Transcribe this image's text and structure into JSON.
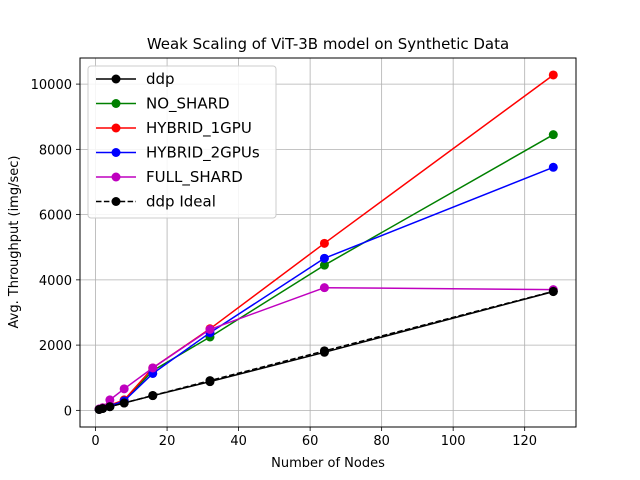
{
  "chart_data": {
    "type": "line",
    "title": "Weak Scaling of ViT-3B model on Synthetic Data",
    "xlabel": "Number of Nodes",
    "ylabel": "Avg. Throughput (img/sec)",
    "xlim": [
      -4.35,
      134.35
    ],
    "ylim": [
      -510,
      10800
    ],
    "xticks": [
      0,
      20,
      40,
      60,
      80,
      100,
      120
    ],
    "yticks": [
      0,
      2000,
      4000,
      6000,
      8000,
      10000
    ],
    "grid": true,
    "legend_position": "top-left",
    "x": [
      1,
      2,
      4,
      8,
      16,
      32,
      64,
      128
    ],
    "series": [
      {
        "name": "ddp",
        "color": "#000000",
        "style": "solid",
        "values": [
          28,
          57,
          112,
          225,
          450,
          880,
          1780,
          3640
        ]
      },
      {
        "name": "NO_SHARD",
        "color": "#008000",
        "style": "solid",
        "values": [
          37,
          75,
          150,
          300,
          1220,
          2250,
          4450,
          8450
        ]
      },
      {
        "name": "HYBRID_1GPU",
        "color": "#ff0000",
        "style": "solid",
        "values": [
          38,
          78,
          160,
          320,
          1300,
          2500,
          5120,
          10280
        ]
      },
      {
        "name": "HYBRID_2GPUs",
        "color": "#0000ff",
        "style": "solid",
        "values": [
          34,
          70,
          140,
          290,
          1130,
          2380,
          4660,
          7450
        ]
      },
      {
        "name": "FULL_SHARD",
        "color": "#bf00bf",
        "style": "solid",
        "values": [
          40,
          80,
          320,
          660,
          1300,
          2480,
          3760,
          3700
        ]
      },
      {
        "name": "ddp Ideal",
        "color": "#000000",
        "style": "dashed",
        "values": [
          28,
          57,
          114,
          228,
          456,
          912,
          1824,
          3648
        ]
      }
    ]
  }
}
